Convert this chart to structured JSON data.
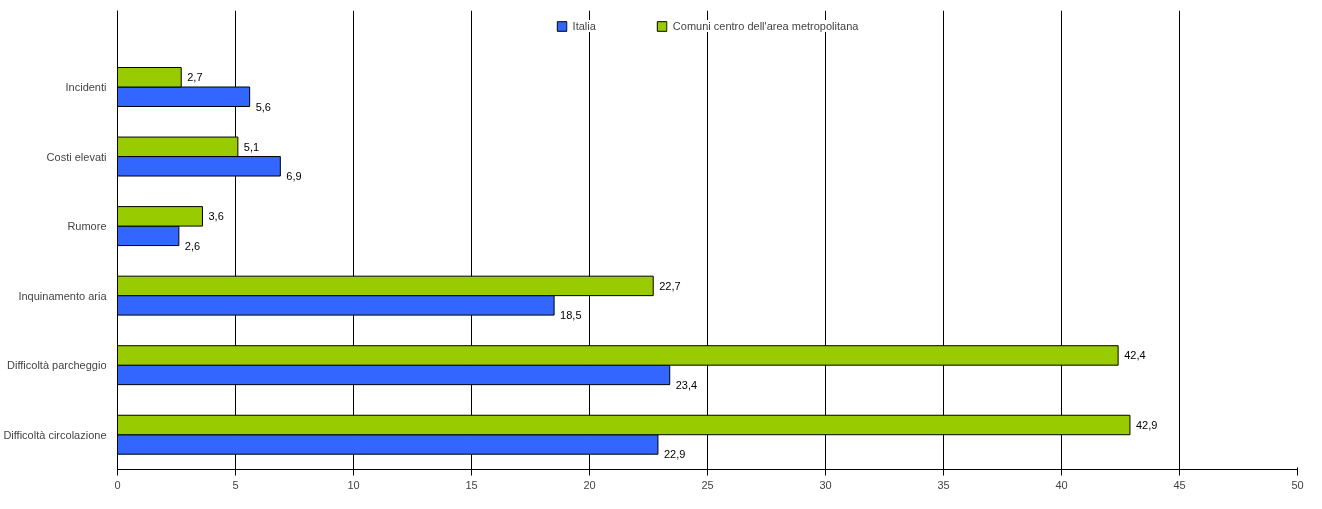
{
  "chart_data": {
    "type": "bar",
    "orientation": "horizontal",
    "categories": [
      "Incidenti",
      "Costi elevati",
      "Rumore",
      "Inquinamento aria",
      "Difficoltà parcheggio",
      "Difficoltà circolazione"
    ],
    "series": [
      {
        "name": "Italia",
        "color": "#3366ff",
        "values": [
          5.6,
          6.9,
          2.6,
          18.5,
          23.4,
          22.9
        ],
        "value_labels": [
          "5,6",
          "6,9",
          "2,6",
          "18,5",
          "23,4",
          "22,9"
        ]
      },
      {
        "name": "Comuni centro dell'area metropolitana",
        "color": "#99cc00",
        "values": [
          2.7,
          5.1,
          3.6,
          22.7,
          42.4,
          42.9
        ],
        "value_labels": [
          "2,7",
          "5,1",
          "3,6",
          "22,7",
          "42,4",
          "42,9"
        ]
      }
    ],
    "xlim": [
      0,
      50
    ],
    "xticks": [
      0,
      5,
      10,
      15,
      20,
      25,
      30,
      35,
      40,
      45,
      50
    ],
    "grid": "x",
    "legend": "top"
  }
}
